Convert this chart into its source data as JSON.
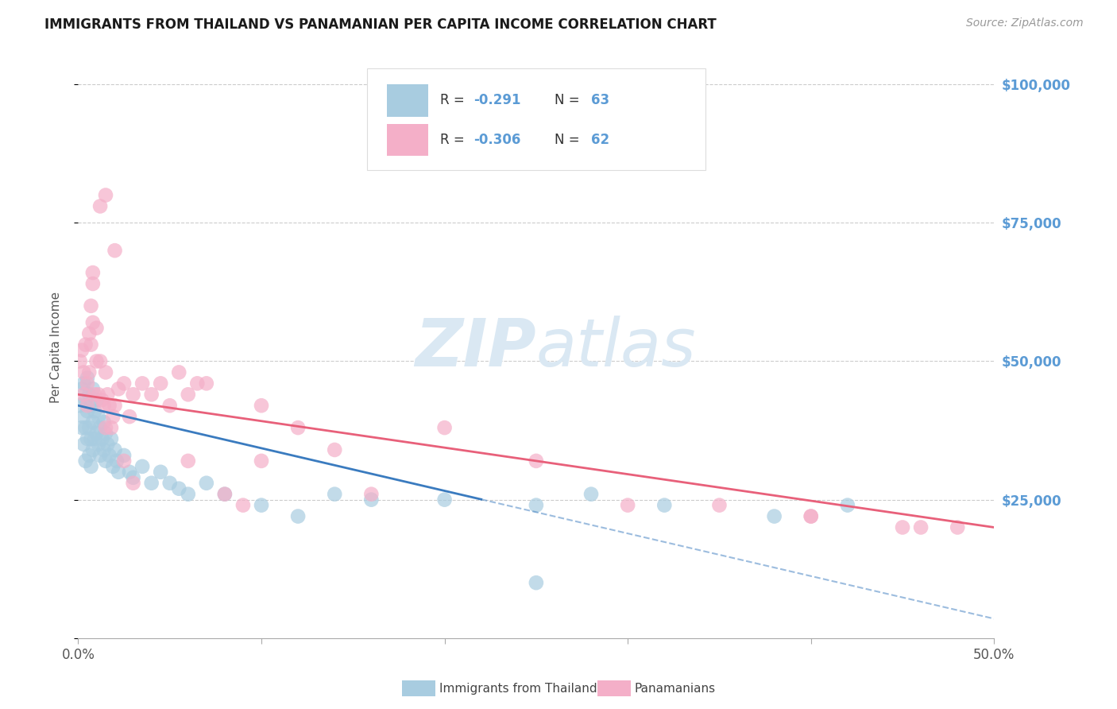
{
  "title": "IMMIGRANTS FROM THAILAND VS PANAMANIAN PER CAPITA INCOME CORRELATION CHART",
  "source": "Source: ZipAtlas.com",
  "ylabel": "Per Capita Income",
  "yticks": [
    0,
    25000,
    50000,
    75000,
    100000
  ],
  "ytick_labels": [
    "",
    "$25,000",
    "$50,000",
    "$75,000",
    "$100,000"
  ],
  "xmin": 0.0,
  "xmax": 0.5,
  "ymin": 0,
  "ymax": 105000,
  "blue_R": -0.291,
  "blue_N": 63,
  "pink_R": -0.306,
  "pink_N": 62,
  "blue_color": "#a8cce0",
  "pink_color": "#f4afc8",
  "blue_line_color": "#3a7bbf",
  "pink_line_color": "#e8607a",
  "watermark_color": "#dae8f3",
  "axis_label_color": "#5b9bd5",
  "background_color": "#ffffff",
  "legend_label_blue": "Immigrants from Thailand",
  "legend_label_pink": "Panamanians",
  "blue_scatter_x": [
    0.001,
    0.002,
    0.002,
    0.003,
    0.003,
    0.003,
    0.004,
    0.004,
    0.004,
    0.005,
    0.005,
    0.005,
    0.006,
    0.006,
    0.006,
    0.007,
    0.007,
    0.007,
    0.008,
    0.008,
    0.008,
    0.009,
    0.009,
    0.01,
    0.01,
    0.011,
    0.011,
    0.012,
    0.012,
    0.013,
    0.014,
    0.014,
    0.015,
    0.015,
    0.016,
    0.017,
    0.018,
    0.019,
    0.02,
    0.021,
    0.022,
    0.025,
    0.028,
    0.03,
    0.035,
    0.04,
    0.045,
    0.05,
    0.055,
    0.06,
    0.07,
    0.08,
    0.1,
    0.12,
    0.14,
    0.16,
    0.2,
    0.25,
    0.28,
    0.32,
    0.38,
    0.42,
    0.25
  ],
  "blue_scatter_y": [
    42000,
    45000,
    38000,
    46000,
    40000,
    35000,
    43000,
    38000,
    32000,
    47000,
    41000,
    36000,
    44000,
    38000,
    33000,
    42000,
    36000,
    31000,
    45000,
    39000,
    34000,
    41000,
    36000,
    43000,
    37000,
    40000,
    35000,
    38000,
    33000,
    36000,
    39000,
    34000,
    37000,
    32000,
    35000,
    33000,
    36000,
    31000,
    34000,
    32000,
    30000,
    33000,
    30000,
    29000,
    31000,
    28000,
    30000,
    28000,
    27000,
    26000,
    28000,
    26000,
    24000,
    22000,
    26000,
    25000,
    25000,
    24000,
    26000,
    24000,
    22000,
    24000,
    10000
  ],
  "pink_scatter_x": [
    0.001,
    0.002,
    0.003,
    0.003,
    0.004,
    0.005,
    0.005,
    0.006,
    0.006,
    0.007,
    0.007,
    0.008,
    0.008,
    0.009,
    0.01,
    0.01,
    0.011,
    0.012,
    0.013,
    0.014,
    0.015,
    0.015,
    0.016,
    0.017,
    0.018,
    0.019,
    0.02,
    0.022,
    0.025,
    0.028,
    0.03,
    0.035,
    0.04,
    0.045,
    0.05,
    0.055,
    0.06,
    0.065,
    0.07,
    0.08,
    0.09,
    0.1,
    0.12,
    0.14,
    0.16,
    0.2,
    0.25,
    0.3,
    0.35,
    0.4,
    0.45,
    0.48,
    0.015,
    0.012,
    0.02,
    0.008,
    0.025,
    0.03,
    0.06,
    0.1,
    0.4,
    0.46
  ],
  "pink_scatter_y": [
    50000,
    52000,
    48000,
    44000,
    53000,
    46000,
    42000,
    55000,
    48000,
    60000,
    53000,
    64000,
    57000,
    44000,
    56000,
    50000,
    44000,
    50000,
    43000,
    42000,
    48000,
    38000,
    44000,
    42000,
    38000,
    40000,
    42000,
    45000,
    46000,
    40000,
    44000,
    46000,
    44000,
    46000,
    42000,
    48000,
    44000,
    46000,
    46000,
    26000,
    24000,
    42000,
    38000,
    34000,
    26000,
    38000,
    32000,
    24000,
    24000,
    22000,
    20000,
    20000,
    80000,
    78000,
    70000,
    66000,
    32000,
    28000,
    32000,
    32000,
    22000,
    20000
  ]
}
